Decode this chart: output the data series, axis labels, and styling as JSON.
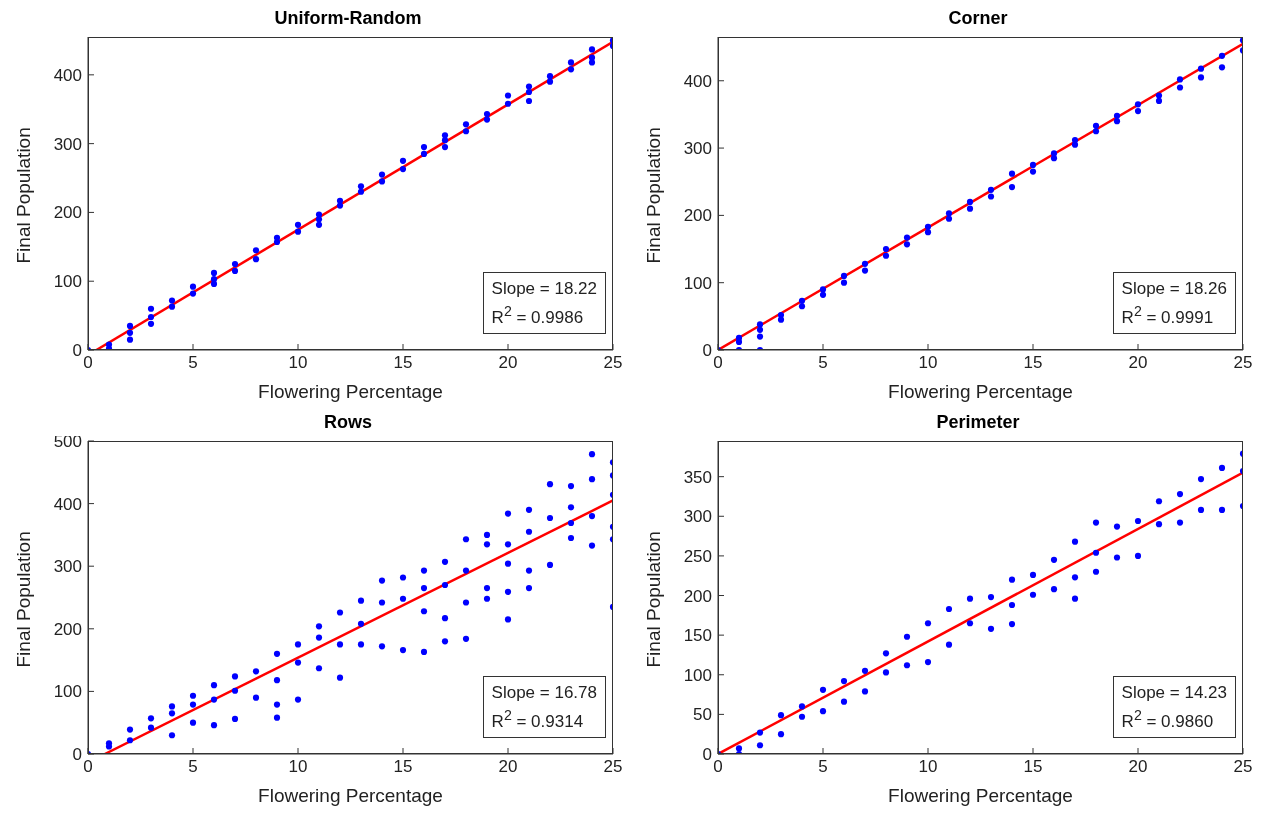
{
  "chart_data": [
    {
      "type": "scatter",
      "title": "Uniform-Random",
      "xlabel": "Flowering Percentage",
      "ylabel": "Final Population",
      "xlim": [
        0,
        25
      ],
      "xticks": [
        0,
        5,
        10,
        15,
        20,
        25
      ],
      "ylim": [
        0,
        455
      ],
      "yticks": [
        0,
        100,
        200,
        300,
        400
      ],
      "grid": false,
      "legend": false,
      "annotations": [
        "Slope = 18.22",
        "R$^{2}$ = 0.9986"
      ],
      "series": [
        {
          "type": "scatter",
          "color": "#0000ff",
          "x": [
            0,
            1,
            1,
            2,
            2,
            2,
            3,
            3,
            3,
            4,
            4,
            5,
            5,
            6,
            6,
            6,
            7,
            7,
            8,
            8,
            9,
            9,
            10,
            10,
            11,
            11,
            11,
            12,
            12,
            13,
            13,
            14,
            14,
            15,
            15,
            16,
            16,
            17,
            17,
            17,
            18,
            18,
            19,
            19,
            20,
            20,
            21,
            21,
            21,
            22,
            22,
            23,
            23,
            24,
            24,
            24,
            25,
            25
          ],
          "values": [
            0,
            2,
            8,
            15,
            25,
            35,
            38,
            48,
            60,
            63,
            72,
            82,
            92,
            96,
            103,
            112,
            115,
            125,
            132,
            145,
            157,
            163,
            172,
            182,
            182,
            190,
            197,
            210,
            217,
            230,
            238,
            245,
            255,
            263,
            275,
            285,
            295,
            295,
            305,
            312,
            318,
            328,
            335,
            343,
            358,
            370,
            362,
            375,
            383,
            390,
            398,
            408,
            418,
            418,
            425,
            437,
            442,
            450
          ]
        },
        {
          "type": "line",
          "color": "#ff0000",
          "x": [
            0.4,
            25
          ],
          "values": [
            0,
            448
          ]
        }
      ]
    },
    {
      "type": "scatter",
      "title": "Corner",
      "xlabel": "Flowering Percentage",
      "ylabel": "Final Population",
      "xlim": [
        0,
        25
      ],
      "xticks": [
        0,
        5,
        10,
        15,
        20,
        25
      ],
      "ylim": [
        0,
        465
      ],
      "yticks": [
        0,
        100,
        200,
        300,
        400
      ],
      "grid": false,
      "legend": false,
      "annotations": [
        "Slope = 18.26",
        "R$^{2}$ = 0.9991"
      ],
      "series": [
        {
          "type": "scatter",
          "color": "#0000ff",
          "x": [
            0,
            1,
            1,
            1,
            2,
            2,
            2,
            2,
            3,
            3,
            4,
            4,
            5,
            5,
            6,
            6,
            7,
            7,
            8,
            8,
            9,
            9,
            10,
            10,
            11,
            11,
            12,
            12,
            13,
            13,
            14,
            14,
            15,
            15,
            16,
            16,
            17,
            17,
            18,
            18,
            19,
            19,
            20,
            20,
            21,
            21,
            22,
            22,
            23,
            23,
            24,
            24,
            25,
            25
          ],
          "values": [
            0,
            0,
            12,
            18,
            0,
            20,
            30,
            38,
            45,
            52,
            65,
            73,
            82,
            90,
            100,
            110,
            118,
            128,
            140,
            150,
            157,
            167,
            175,
            183,
            195,
            203,
            210,
            220,
            228,
            238,
            242,
            262,
            265,
            275,
            285,
            292,
            305,
            312,
            325,
            333,
            340,
            348,
            355,
            365,
            370,
            378,
            390,
            402,
            405,
            418,
            420,
            437,
            445,
            460
          ]
        },
        {
          "type": "line",
          "color": "#ff0000",
          "x": [
            0,
            25
          ],
          "values": [
            0,
            455
          ]
        }
      ]
    },
    {
      "type": "scatter",
      "title": "Rows",
      "xlabel": "Flowering Percentage",
      "ylabel": "Final Population",
      "xlim": [
        0,
        25
      ],
      "xticks": [
        0,
        5,
        10,
        15,
        20,
        25
      ],
      "ylim": [
        0,
        500
      ],
      "yticks": [
        0,
        100,
        200,
        300,
        400,
        500
      ],
      "grid": false,
      "legend": false,
      "annotations": [
        "Slope = 16.78",
        "R$^{2}$ = 0.9314"
      ],
      "series": [
        {
          "type": "scatter",
          "color": "#0000ff",
          "x": [
            0,
            1,
            1,
            2,
            2,
            3,
            3,
            4,
            4,
            4,
            5,
            5,
            5,
            6,
            6,
            6,
            7,
            7,
            7,
            8,
            8,
            9,
            9,
            9,
            9,
            10,
            10,
            10,
            11,
            11,
            11,
            12,
            12,
            12,
            13,
            13,
            13,
            14,
            14,
            14,
            15,
            15,
            15,
            16,
            16,
            16,
            16,
            17,
            17,
            17,
            17,
            18,
            18,
            18,
            18,
            19,
            19,
            19,
            19,
            20,
            20,
            20,
            20,
            20,
            21,
            21,
            21,
            21,
            22,
            22,
            22,
            23,
            23,
            23,
            23,
            24,
            24,
            24,
            24,
            25,
            25,
            25,
            25,
            25,
            25
          ],
          "values": [
            0,
            17,
            12,
            39,
            22,
            57,
            42,
            76,
            65,
            30,
            93,
            79,
            50,
            110,
            87,
            46,
            124,
            101,
            56,
            132,
            90,
            160,
            118,
            79,
            58,
            175,
            146,
            87,
            204,
            186,
            137,
            226,
            175,
            122,
            245,
            208,
            175,
            277,
            242,
            172,
            282,
            248,
            166,
            293,
            265,
            228,
            163,
            307,
            270,
            217,
            180,
            343,
            293,
            242,
            184,
            350,
            335,
            265,
            248,
            384,
            335,
            304,
            259,
            215,
            390,
            355,
            293,
            265,
            431,
            377,
            302,
            428,
            394,
            369,
            345,
            479,
            439,
            380,
            333,
            466,
            445,
            414,
            363,
            343,
            235
          ]
        },
        {
          "type": "line",
          "color": "#ff0000",
          "x": [
            0.8,
            25
          ],
          "values": [
            0,
            405
          ]
        }
      ]
    },
    {
      "type": "scatter",
      "title": "Perimeter",
      "xlabel": "Flowering Percentage",
      "ylabel": "Final Population",
      "xlim": [
        0,
        25
      ],
      "xticks": [
        0,
        5,
        10,
        15,
        20,
        25
      ],
      "ylim": [
        0,
        395
      ],
      "yticks": [
        0,
        50,
        100,
        150,
        200,
        250,
        300,
        350
      ],
      "grid": false,
      "legend": false,
      "annotations": [
        "Slope = 14.23",
        "R$^{2}$ = 0.9860"
      ],
      "series": [
        {
          "type": "scatter",
          "color": "#0000ff",
          "x": [
            0,
            1,
            1,
            2,
            2,
            3,
            3,
            4,
            4,
            5,
            5,
            6,
            6,
            7,
            7,
            8,
            8,
            9,
            9,
            10,
            10,
            11,
            11,
            12,
            12,
            13,
            13,
            14,
            14,
            14,
            15,
            15,
            16,
            16,
            17,
            17,
            17,
            18,
            18,
            18,
            19,
            19,
            20,
            20,
            21,
            21,
            22,
            22,
            23,
            23,
            24,
            24,
            25,
            25,
            25
          ],
          "values": [
            0,
            7,
            0,
            27,
            11,
            49,
            25,
            60,
            47,
            81,
            54,
            92,
            66,
            105,
            79,
            127,
            103,
            148,
            112,
            165,
            116,
            183,
            138,
            196,
            165,
            198,
            158,
            220,
            188,
            164,
            226,
            201,
            245,
            208,
            268,
            223,
            196,
            292,
            254,
            230,
            287,
            248,
            294,
            250,
            319,
            290,
            328,
            292,
            347,
            308,
            361,
            308,
            379,
            357,
            313
          ]
        },
        {
          "type": "line",
          "color": "#ff0000",
          "x": [
            0,
            25
          ],
          "values": [
            0,
            355
          ]
        }
      ]
    }
  ]
}
